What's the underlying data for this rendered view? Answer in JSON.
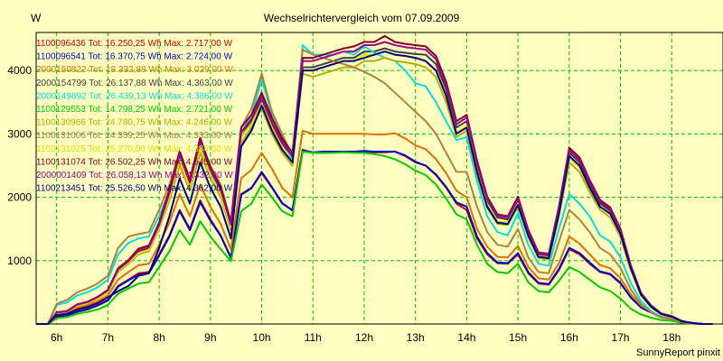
{
  "chart_data": {
    "type": "line",
    "title": "Wechselrichtervergleich vom 07.09.2009",
    "ylabel": "W",
    "credit": "SunnyReport pinxit",
    "xlim": [
      5.6,
      19.0
    ],
    "ylim": [
      0,
      4600
    ],
    "x_ticks": [
      6,
      7,
      8,
      9,
      10,
      11,
      12,
      13,
      14,
      15,
      16,
      17,
      18
    ],
    "x_tick_labels": [
      "6h",
      "7h",
      "8h",
      "9h",
      "10h",
      "11h",
      "12h",
      "13h",
      "14h",
      "15h",
      "16h",
      "17h",
      "18h"
    ],
    "y_ticks": [
      1000,
      2000,
      3000,
      4000
    ],
    "y_tick_labels": [
      "1000",
      "2000",
      "3000",
      "4000"
    ],
    "grid": true,
    "legend": "top-left",
    "x": [
      5.6,
      5.83,
      6.0,
      6.2,
      6.4,
      6.6,
      6.8,
      7.0,
      7.2,
      7.4,
      7.6,
      7.8,
      8.0,
      8.2,
      8.4,
      8.6,
      8.8,
      9.0,
      9.2,
      9.4,
      9.6,
      9.8,
      10.0,
      10.2,
      10.4,
      10.6,
      10.8,
      11.0,
      11.2,
      11.4,
      11.6,
      11.8,
      12.0,
      12.2,
      12.4,
      12.6,
      12.8,
      13.0,
      13.2,
      13.4,
      13.6,
      13.8,
      14.0,
      14.2,
      14.4,
      14.6,
      14.8,
      15.0,
      15.2,
      15.4,
      15.6,
      15.8,
      16.0,
      16.2,
      16.4,
      16.6,
      16.8,
      17.0,
      17.2,
      17.4,
      17.6,
      17.8,
      18.0,
      18.2,
      18.4,
      18.6,
      18.8
    ],
    "series": [
      {
        "name": "1100096436 Tot: 16.250,25 Wh Max: 2.717,00 W",
        "color": "#cc0000",
        "values": [
          0,
          0,
          120,
          140,
          200,
          240,
          300,
          380,
          600,
          700,
          800,
          820,
          1100,
          1400,
          1800,
          1500,
          1950,
          1650,
          1400,
          1050,
          2050,
          2150,
          2380,
          2150,
          1900,
          1800,
          2750,
          2700,
          2700,
          2710,
          2710,
          2710,
          2720,
          2710,
          2710,
          2720,
          2650,
          2550,
          2500,
          2350,
          2150,
          1900,
          1800,
          1350,
          1100,
          960,
          950,
          1100,
          800,
          640,
          620,
          850,
          1180,
          1100,
          950,
          820,
          780,
          640,
          420,
          260,
          180,
          100,
          80,
          30,
          10,
          0,
          0
        ]
      },
      {
        "name": "1100096541 Tot: 16.370,75 Wh Max: 2.724,00 W",
        "color": "#0000cc",
        "values": [
          0,
          0,
          110,
          130,
          190,
          230,
          290,
          370,
          590,
          690,
          780,
          800,
          1080,
          1380,
          1780,
          1480,
          1920,
          1630,
          1390,
          1040,
          2040,
          2140,
          2400,
          2160,
          1910,
          1790,
          2740,
          2710,
          2720,
          2720,
          2720,
          2720,
          2730,
          2720,
          2720,
          2720,
          2660,
          2560,
          2500,
          2360,
          2160,
          1920,
          1850,
          1380,
          1120,
          970,
          960,
          1120,
          820,
          650,
          630,
          870,
          1200,
          1120,
          970,
          830,
          790,
          650,
          420,
          260,
          180,
          100,
          80,
          30,
          10,
          0,
          0
        ]
      },
      {
        "name": "2000150822 Tot: 18.332,88 Wh Max: 3.029,00 W",
        "color": "#e07000",
        "values": [
          0,
          0,
          150,
          180,
          250,
          300,
          360,
          450,
          700,
          820,
          930,
          950,
          1250,
          1600,
          2050,
          1700,
          2200,
          1850,
          1580,
          1180,
          2300,
          2430,
          2700,
          2450,
          2150,
          2000,
          3050,
          3000,
          3000,
          3000,
          3000,
          3000,
          3000,
          2990,
          2990,
          3010,
          2930,
          2820,
          2760,
          2600,
          2380,
          2100,
          2000,
          1500,
          1220,
          1060,
          1050,
          1230,
          900,
          720,
          700,
          960,
          1380,
          1270,
          1100,
          930,
          880,
          720,
          470,
          290,
          200,
          110,
          90,
          35,
          12,
          0,
          0
        ]
      },
      {
        "name": "2000154799 Tot: 26.137,88 Wh Max: 4.363,00 W",
        "color": "#404040",
        "values": [
          0,
          0,
          180,
          200,
          300,
          340,
          420,
          520,
          850,
          980,
          1150,
          1200,
          1550,
          2050,
          2650,
          2200,
          2850,
          2400,
          2100,
          1550,
          3000,
          3200,
          3550,
          3150,
          2850,
          2620,
          4050,
          4050,
          4100,
          4150,
          4200,
          4200,
          4300,
          4300,
          4350,
          4300,
          4280,
          4260,
          4250,
          4100,
          3700,
          3100,
          3200,
          2500,
          1950,
          1680,
          1650,
          1950,
          1450,
          1100,
          1080,
          1800,
          2700,
          2550,
          2200,
          1900,
          1780,
          1450,
          900,
          480,
          280,
          160,
          120,
          45,
          15,
          0,
          0
        ]
      },
      {
        "name": "2000149892 Tot: 26.439,13 Wh Max: 4.386,00 W",
        "color": "#00e0e0",
        "values": [
          0,
          0,
          300,
          340,
          450,
          500,
          580,
          700,
          1100,
          1280,
          1350,
          1380,
          1700,
          2100,
          2600,
          2200,
          2800,
          2400,
          2100,
          1550,
          3000,
          3300,
          3850,
          3300,
          2950,
          2580,
          4400,
          4250,
          4250,
          4250,
          4300,
          4250,
          4380,
          4280,
          4200,
          4150,
          4000,
          3800,
          3750,
          3500,
          3200,
          2900,
          2950,
          2250,
          1700,
          1450,
          1400,
          1750,
          1250,
          950,
          920,
          1500,
          2050,
          1900,
          1700,
          1400,
          1300,
          1050,
          650,
          360,
          200,
          110,
          80,
          30,
          10,
          0,
          0
        ]
      },
      {
        "name": "1100129553 Tot: 14.798,25 Wh Max: 2.721,00 W",
        "color": "#00cc00",
        "values": [
          0,
          0,
          90,
          110,
          160,
          190,
          230,
          300,
          480,
          560,
          640,
          660,
          900,
          1150,
          1480,
          1250,
          1620,
          1380,
          1180,
          990,
          1780,
          1900,
          2200,
          2000,
          1780,
          1700,
          2720,
          2700,
          2700,
          2700,
          2710,
          2700,
          2700,
          2680,
          2650,
          2600,
          2520,
          2420,
          2350,
          2200,
          1980,
          1730,
          1650,
          1250,
          950,
          820,
          800,
          950,
          660,
          520,
          500,
          680,
          900,
          820,
          700,
          580,
          520,
          400,
          240,
          150,
          100,
          60,
          50,
          20,
          5,
          0,
          0
        ]
      },
      {
        "name": "1100130966 Tot: 24.780,75 Wh Max: 4.246,00 W",
        "color": "#b0b000",
        "values": [
          0,
          0,
          170,
          190,
          280,
          320,
          400,
          500,
          820,
          950,
          1100,
          1150,
          1500,
          1950,
          2500,
          2100,
          2700,
          2300,
          2000,
          1480,
          2850,
          3100,
          3400,
          3000,
          2700,
          2500,
          3950,
          3900,
          3950,
          4000,
          4050,
          4050,
          4150,
          4150,
          4200,
          4150,
          4130,
          4100,
          4050,
          3900,
          3500,
          2950,
          3050,
          2350,
          1830,
          1580,
          1560,
          1850,
          1370,
          1040,
          1020,
          1700,
          2550,
          2400,
          2080,
          1800,
          1680,
          1370,
          850,
          450,
          260,
          150,
          110,
          40,
          14,
          0,
          0
        ]
      },
      {
        "name": "1100131006 Tot: 24.359,25 Wh Max: 4.333,00 W",
        "color": "#b08040",
        "values": [
          0,
          0,
          320,
          380,
          500,
          560,
          640,
          760,
          1200,
          1380,
          1420,
          1450,
          1800,
          2200,
          2700,
          2300,
          2900,
          2500,
          2200,
          1620,
          3100,
          3400,
          3950,
          3350,
          3000,
          2650,
          4330,
          4250,
          4200,
          4150,
          4100,
          4050,
          3980,
          3900,
          3800,
          3650,
          3500,
          3350,
          3200,
          3000,
          2700,
          2400,
          2400,
          1850,
          1450,
          1250,
          1220,
          1500,
          1050,
          820,
          800,
          1300,
          1800,
          1650,
          1450,
          1200,
          1100,
          880,
          550,
          310,
          180,
          100,
          80,
          30,
          10,
          0,
          0
        ]
      },
      {
        "name": "1100131025 Tot: 25.270,00 Wh Max: 4.384,00 W",
        "color": "#e0e000",
        "values": [
          0,
          0,
          175,
          195,
          290,
          330,
          410,
          510,
          840,
          970,
          1120,
          1170,
          1520,
          2000,
          2580,
          2150,
          2780,
          2350,
          2050,
          1520,
          2950,
          3150,
          3480,
          3100,
          2780,
          2560,
          4000,
          4000,
          4050,
          4100,
          4150,
          4150,
          4250,
          4250,
          4300,
          4250,
          4230,
          4200,
          4150,
          4000,
          3600,
          3020,
          3120,
          2420,
          1880,
          1620,
          1600,
          1900,
          1410,
          1070,
          1050,
          1750,
          2620,
          2480,
          2140,
          1850,
          1730,
          1410,
          870,
          460,
          270,
          155,
          115,
          42,
          14,
          0,
          0
        ]
      },
      {
        "name": "1100131074 Tot: 26.502,25 Wh Max: 4.545,00 W",
        "color": "#800020",
        "values": [
          0,
          0,
          185,
          205,
          310,
          350,
          430,
          540,
          880,
          1010,
          1190,
          1240,
          1600,
          2120,
          2730,
          2270,
          2940,
          2470,
          2160,
          1600,
          3100,
          3300,
          3650,
          3250,
          2930,
          2700,
          4200,
          4200,
          4250,
          4300,
          4350,
          4380,
          4450,
          4450,
          4545,
          4450,
          4420,
          4400,
          4380,
          4230,
          3820,
          3200,
          3300,
          2580,
          2010,
          1730,
          1700,
          2010,
          1490,
          1130,
          1110,
          1860,
          2780,
          2630,
          2270,
          1960,
          1840,
          1500,
          930,
          490,
          290,
          165,
          125,
          46,
          15,
          0,
          0
        ]
      },
      {
        "name": "2000001409 Tot: 26.058,13 Wh Max: 4.332,00 W",
        "color": "#a00090",
        "values": [
          0,
          0,
          180,
          200,
          305,
          345,
          425,
          530,
          860,
          990,
          1160,
          1210,
          1560,
          2070,
          2680,
          2230,
          2880,
          2430,
          2120,
          1570,
          3030,
          3230,
          3580,
          3180,
          2880,
          2640,
          4150,
          4150,
          4200,
          4250,
          4300,
          4300,
          4400,
          4400,
          4450,
          4400,
          4370,
          4350,
          4330,
          4180,
          3760,
          3150,
          3260,
          2550,
          1980,
          1710,
          1680,
          1980,
          1470,
          1115,
          1095,
          1840,
          2740,
          2590,
          2240,
          1930,
          1810,
          1470,
          915,
          485,
          285,
          162,
          122,
          45,
          15,
          0,
          0
        ]
      },
      {
        "name": "1100213451 Tot: 25.526,50 Wh Max: 4.362,00 W",
        "color": "#000080",
        "values": [
          0,
          0,
          140,
          160,
          230,
          270,
          330,
          420,
          520,
          600,
          760,
          800,
          1200,
          1700,
          2300,
          1900,
          2550,
          2150,
          1850,
          1350,
          2800,
          3050,
          3450,
          3050,
          2750,
          2550,
          4000,
          4000,
          4050,
          4100,
          4150,
          4150,
          4200,
          4250,
          4300,
          4250,
          4230,
          4200,
          4150,
          4000,
          3600,
          3000,
          3100,
          2400,
          1850,
          1600,
          1580,
          1880,
          1400,
          1060,
          1040,
          1740,
          2650,
          2500,
          2150,
          1850,
          1740,
          1420,
          880,
          460,
          270,
          155,
          115,
          42,
          14,
          0,
          0
        ]
      }
    ]
  }
}
